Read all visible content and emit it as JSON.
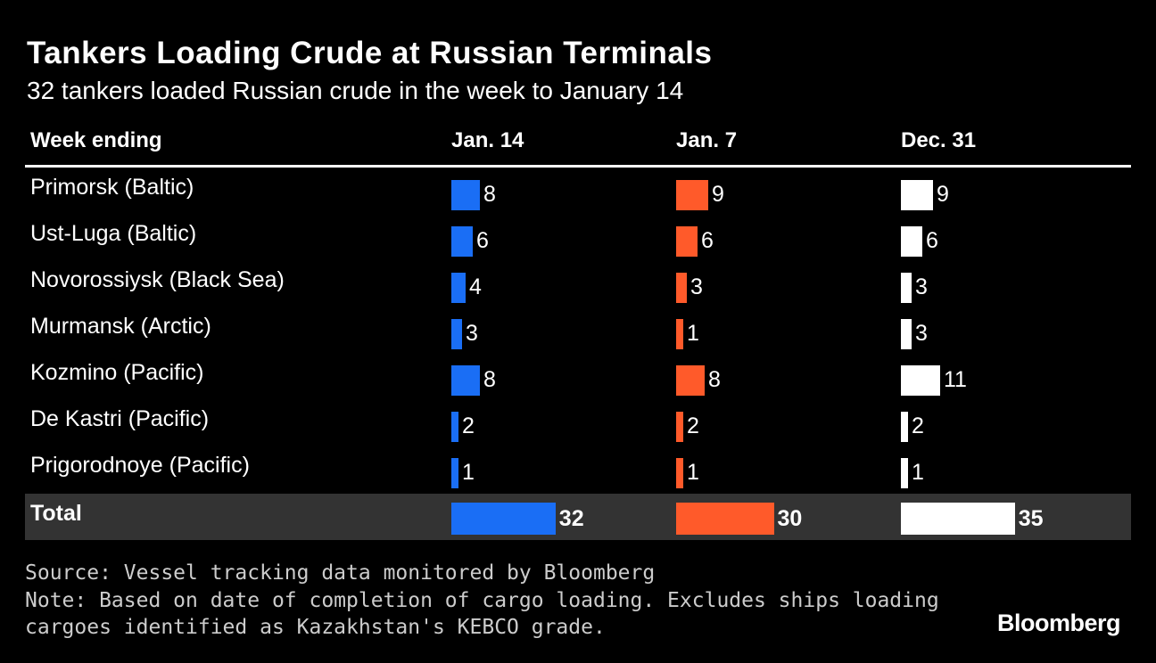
{
  "title": "Tankers Loading Crude at Russian Terminals",
  "subtitle": "32 tankers loaded Russian crude in the week to January 14",
  "brand": "Bloomberg",
  "source": "Source: Vessel tracking data monitored by Bloomberg",
  "note_line1": "Note: Based on date of completion of cargo loading. Excludes ships loading",
  "note_line2": "cargoes identified as Kazakhstan's KEBCO grade.",
  "chart_data": {
    "type": "table",
    "row_header": "Week ending",
    "columns": [
      {
        "name": "Jan. 14",
        "color": "#1a6ef5"
      },
      {
        "name": "Jan. 7",
        "color": "#ff5a2a"
      },
      {
        "name": "Dec. 31",
        "color": "#ffffff"
      }
    ],
    "rows": [
      {
        "label": "Primorsk (Baltic)",
        "values": [
          8,
          9,
          9
        ]
      },
      {
        "label": "Ust-Luga (Baltic)",
        "values": [
          6,
          6,
          6
        ]
      },
      {
        "label": "Novorossiysk (Black Sea)",
        "values": [
          4,
          3,
          3
        ]
      },
      {
        "label": "Murmansk (Arctic)",
        "values": [
          3,
          1,
          3
        ]
      },
      {
        "label": "Kozmino (Pacific)",
        "values": [
          8,
          8,
          11
        ]
      },
      {
        "label": "De Kastri (Pacific)",
        "values": [
          2,
          2,
          2
        ]
      },
      {
        "label": "Prigorodnoye (Pacific)",
        "values": [
          1,
          1,
          1
        ]
      }
    ],
    "total": {
      "label": "Total",
      "values": [
        32,
        30,
        35
      ]
    }
  }
}
